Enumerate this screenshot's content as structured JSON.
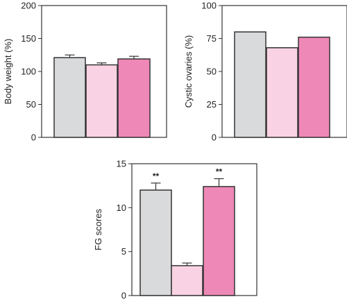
{
  "chart_data": [
    {
      "type": "bar",
      "ylabel": "Body weight (%)",
      "ylim": [
        0,
        200
      ],
      "yticks": [
        "0",
        "50",
        "100",
        "150",
        "200"
      ],
      "values": [
        121,
        110,
        119
      ],
      "errors": [
        4,
        3,
        4
      ],
      "colors": [
        "#d9dadc",
        "#f9d3e3",
        "#ee88b6"
      ],
      "annotations": [
        "",
        "",
        ""
      ],
      "grid": false
    },
    {
      "type": "bar",
      "ylabel": "Cystic ovaries (%)",
      "ylim": [
        0,
        100
      ],
      "yticks": [
        "0",
        "25",
        "50",
        "75",
        "100"
      ],
      "values": [
        80,
        68,
        76
      ],
      "errors": [
        0,
        0,
        0
      ],
      "colors": [
        "#d9dadc",
        "#f9d3e3",
        "#ee88b6"
      ],
      "annotations": [
        "",
        "",
        ""
      ],
      "grid": false
    },
    {
      "type": "bar",
      "ylabel": "FG scores",
      "ylim": [
        0,
        15
      ],
      "yticks": [
        "0",
        "5",
        "10",
        "15"
      ],
      "values": [
        12.0,
        3.4,
        12.4
      ],
      "errors": [
        0.8,
        0.3,
        0.9
      ],
      "colors": [
        "#d9dadc",
        "#f9d3e3",
        "#ee88b6"
      ],
      "annotations": [
        "**",
        "",
        "**"
      ],
      "grid": false
    }
  ]
}
